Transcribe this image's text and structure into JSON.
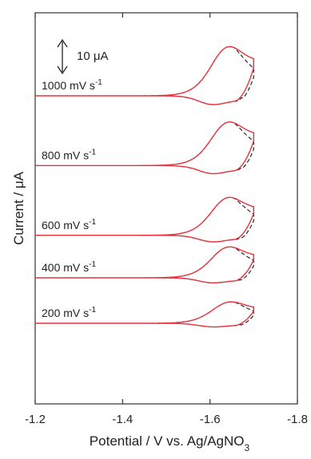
{
  "chart_data": {
    "type": "line",
    "xlabel": "Potential / V vs. Ag/AgNO",
    "xlabel_subscript": "3",
    "ylabel": "Current / μA",
    "xlim": [
      -1.2,
      -1.8
    ],
    "x_reversed": true,
    "xticks": [
      -1.2,
      -1.4,
      -1.6,
      -1.8
    ],
    "xtick_labels": [
      "-1.2",
      "-1.4",
      "-1.6",
      "-1.8"
    ],
    "y_tick_labels_shown": false,
    "scale_bar": {
      "label": "10 μA",
      "value_uA": 10
    },
    "legend": "none",
    "grid": false,
    "line_styles": {
      "measured": "solid",
      "simulated": "dashed"
    },
    "colors": {
      "measured": "#e8323c",
      "simulated": "#1a1a1a",
      "axis": "#333333"
    },
    "series": [
      {
        "label": "1000 mV s",
        "sup": "-1",
        "scan_rate_mV_s": 1000,
        "offset_uA": 0,
        "peak_cathodic": {
          "x": -1.635,
          "y": 17.5
        },
        "peak_anodic": {
          "x": -1.575,
          "y": -6.0
        },
        "switch_potential": -1.7
      },
      {
        "label": "800 mV s",
        "sup": "-1",
        "scan_rate_mV_s": 800,
        "offset_uA": -23,
        "peak_cathodic": {
          "x": -1.635,
          "y": 15.5
        },
        "peak_anodic": {
          "x": -1.575,
          "y": -5.5
        },
        "switch_potential": -1.7
      },
      {
        "label": "600 mV s",
        "sup": "-1",
        "scan_rate_mV_s": 600,
        "offset_uA": -46,
        "peak_cathodic": {
          "x": -1.635,
          "y": 13.5
        },
        "peak_anodic": {
          "x": -1.575,
          "y": -4.5
        },
        "switch_potential": -1.7
      },
      {
        "label": "400 mV s",
        "sup": "-1",
        "scan_rate_mV_s": 400,
        "offset_uA": -60,
        "peak_cathodic": {
          "x": -1.635,
          "y": 11.0
        },
        "peak_anodic": {
          "x": -1.575,
          "y": -3.5
        },
        "switch_potential": -1.7
      },
      {
        "label": "200 mV s",
        "sup": "-1",
        "scan_rate_mV_s": 200,
        "offset_uA": -75,
        "peak_cathodic": {
          "x": -1.64,
          "y": 7.5
        },
        "peak_anodic": {
          "x": -1.575,
          "y": -2.5
        },
        "switch_potential": -1.7
      }
    ]
  }
}
